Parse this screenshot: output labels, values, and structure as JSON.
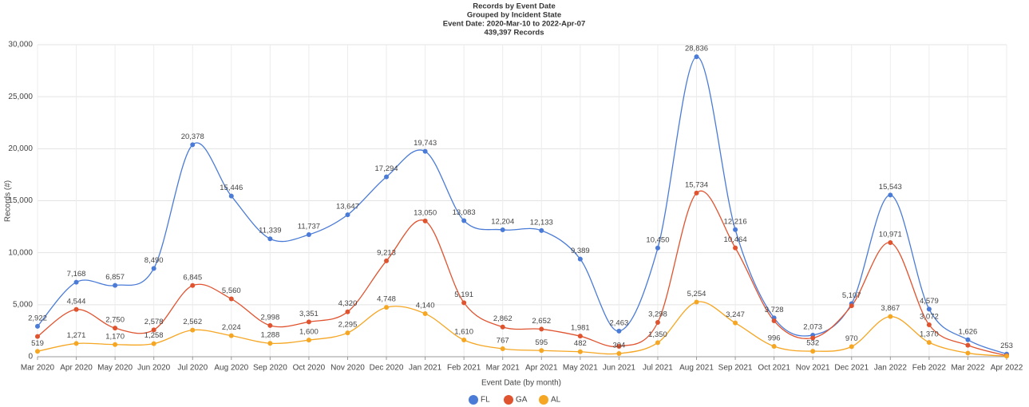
{
  "chart_data": {
    "type": "line",
    "title": "Records by Event Date",
    "subtitle": [
      "Grouped by Incident State",
      "Event Date: 2020-Mar-10 to 2022-Apr-07",
      "439,397 Records"
    ],
    "xlabel": "Event Date (by month)",
    "ylabel": "Records (#)",
    "categories": [
      "Mar 2020",
      "Apr 2020",
      "May 2020",
      "Jun 2020",
      "Jul 2020",
      "Aug 2020",
      "Sep 2020",
      "Oct 2020",
      "Nov 2020",
      "Dec 2020",
      "Jan 2021",
      "Feb 2021",
      "Mar 2021",
      "Apr 2021",
      "May 2021",
      "Jun 2021",
      "Jul 2021",
      "Aug 2021",
      "Sep 2021",
      "Oct 2021",
      "Nov 2021",
      "Dec 2021",
      "Jan 2022",
      "Feb 2022",
      "Mar 2022",
      "Apr 2022"
    ],
    "ylim": [
      0,
      30000
    ],
    "yticks": [
      0,
      {
        "value": 5000,
        "label": "5,000"
      },
      {
        "value": 10000,
        "label": "10,000"
      },
      {
        "value": 15000,
        "label": "15,000"
      },
      {
        "value": 20000,
        "label": "20,000"
      },
      {
        "value": 25000,
        "label": "25,000"
      },
      {
        "value": 30000,
        "label": "30,000"
      }
    ],
    "grid": true,
    "legend": "bottom",
    "series": [
      {
        "name": "FL",
        "color": "#4a7bd6",
        "values": [
          2922,
          7168,
          6857,
          8490,
          20378,
          15446,
          11339,
          11737,
          13647,
          17294,
          19743,
          13083,
          12204,
          12133,
          9389,
          2463,
          10450,
          28836,
          12216,
          3728,
          2073,
          5107,
          15543,
          4579,
          1626,
          253
        ],
        "value_labels": [
          "2,922",
          "7,168",
          "6,857",
          "8,490",
          "20,378",
          "15,446",
          "11,339",
          "11,737",
          "13,647",
          "17,294",
          "19,743",
          "13,083",
          "12,204",
          "12,133",
          "9,389",
          "2,463",
          "10,450",
          "28,836",
          "12,216",
          "3,728",
          "2,073",
          "5,107",
          "15,543",
          "4,579",
          "1,626",
          "253"
        ]
      },
      {
        "name": "GA",
        "color": "#e0532f",
        "values": [
          1950,
          4544,
          2750,
          2578,
          6845,
          5560,
          2998,
          3351,
          4320,
          9213,
          13050,
          5191,
          2862,
          2652,
          1981,
          1000,
          3298,
          15734,
          10464,
          3450,
          1800,
          4900,
          10971,
          3072,
          1100,
          100
        ],
        "value_labels": [
          null,
          "4,544",
          "2,750",
          "2,578",
          "6,845",
          "5,560",
          "2,998",
          "3,351",
          "4,320",
          "9,213",
          "13,050",
          "5,191",
          "2,862",
          "2,652",
          "1,981",
          null,
          "3,298",
          "15,734",
          "10,464",
          null,
          null,
          null,
          "10,971",
          "3,072",
          null,
          null
        ]
      },
      {
        "name": "AL",
        "color": "#f5a623",
        "values": [
          519,
          1271,
          1170,
          1258,
          2562,
          2024,
          1288,
          1600,
          2295,
          4748,
          4140,
          1610,
          767,
          595,
          482,
          304,
          1350,
          5254,
          3247,
          996,
          532,
          970,
          3867,
          1370,
          350,
          60
        ],
        "value_labels": [
          "519",
          "1,271",
          "1,170",
          "1,258",
          "2,562",
          "2,024",
          "1,288",
          "1,600",
          "2,295",
          "4,748",
          "4,140",
          "1,610",
          "767",
          "595",
          "482",
          "304",
          "1,350",
          "5,254",
          "3,247",
          "996",
          "532",
          "970",
          "3,867",
          "1,370",
          null,
          null
        ]
      }
    ]
  }
}
